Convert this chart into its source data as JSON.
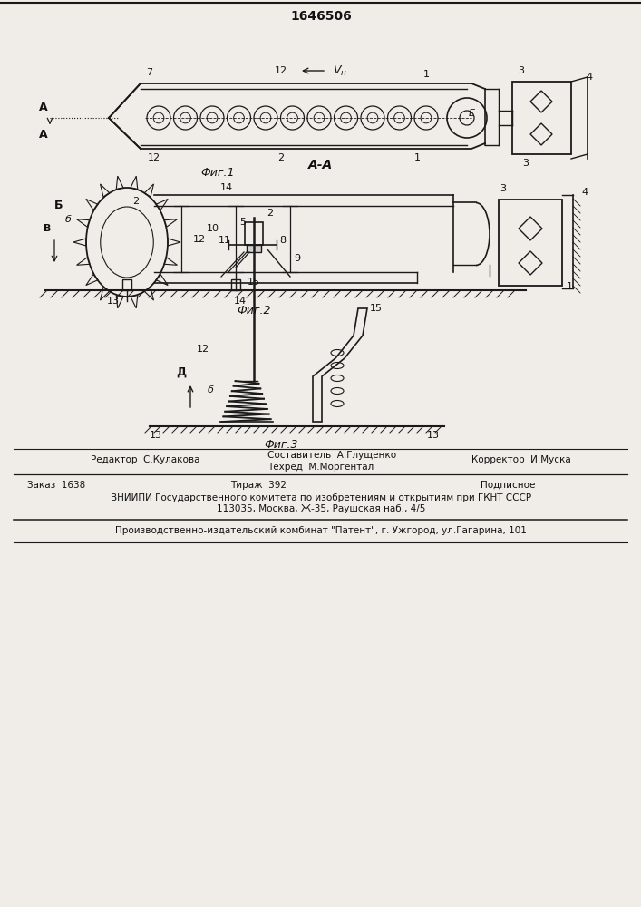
{
  "patent_number": "1646506",
  "fig1_caption": "Фиг.1",
  "fig2_caption": "Фиг.2",
  "fig3_caption": "Фиг.3",
  "section_label": "А-А",
  "editor_line": "Редактор  С.Кулакова",
  "composer_line": "Составитель  А.Глущенко",
  "techred_line": "Техред  М.Моргентал",
  "corrector_line": "Корректор  И.Муска",
  "order_line": "Заказ  1638",
  "tirazh_line": "Тираж  392",
  "podpisnoe_line": "Подписное",
  "vniip_line": "ВНИИПИ Государственного комитета по изобретениям и открытиям при ГКНТ СССР",
  "address_line": "113035, Москва, Ж-35, Раушская наб., 4/5",
  "factory_line": "Производственно-издательский комбинат \"Патент\", г. Ужгород, ул.Гагарина, 101",
  "bg_color": "#f0ede8",
  "line_color": "#1a1a1a",
  "text_color": "#111111"
}
